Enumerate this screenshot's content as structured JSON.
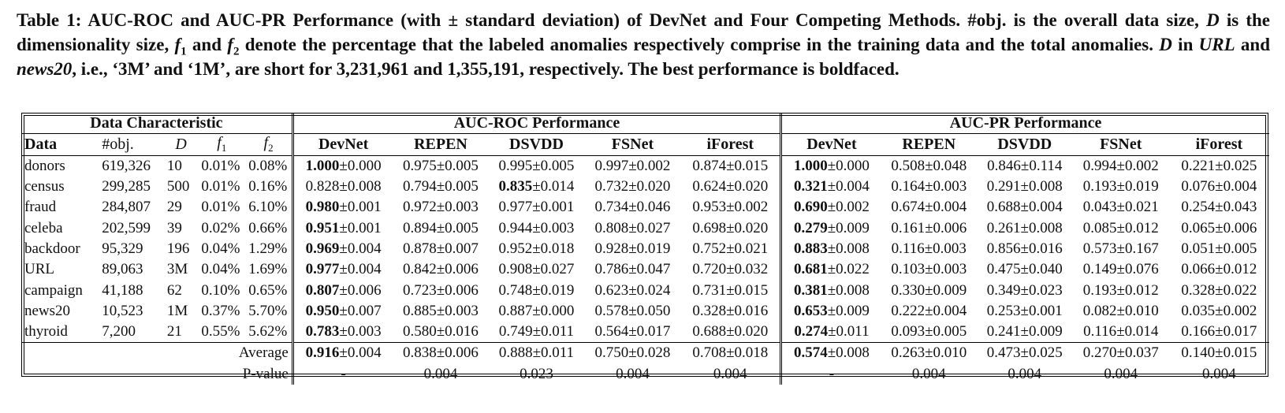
{
  "caption": {
    "part1": "Table 1: AUC-ROC and AUC-PR Performance (with ± standard deviation) of DevNet and Four Competing Methods. #obj. is the overall data size, ",
    "D1": "D",
    "part2": " is the dimensionality size, ",
    "f": "f",
    "sub1": "1",
    "and1": " and ",
    "sub2": "2",
    "part3": " denote the percentage that the labeled anomalies respectively comprise in the training data and the total anomalies. ",
    "D2": "D",
    "part4": " in ",
    "url": "URL",
    "and2": " and ",
    "news": "news20",
    "part5": ", i.e., ‘3M’ and ‘1M’, are short for 3,231,961 and 1,355,191, respectively. The best performance is boldfaced."
  },
  "groups": {
    "data": "Data Characteristic",
    "roc": "AUC-ROC Performance",
    "pr": "AUC-PR Performance"
  },
  "headers": {
    "data": "Data",
    "obj": "#obj.",
    "D": "D",
    "f1": "f",
    "f1sub": "1",
    "f2": "f",
    "f2sub": "2",
    "methods": [
      "DevNet",
      "REPEN",
      "DSVDD",
      "FSNet",
      "iForest"
    ]
  },
  "rows": [
    {
      "name": "donors",
      "obj": "619,326",
      "D": "10",
      "f1": "0.01%",
      "f2": "0.08%",
      "roc": [
        {
          "v": "1.000",
          "s": "±0.000",
          "b": true
        },
        {
          "v": "0.975",
          "s": "±0.005"
        },
        {
          "v": "0.995",
          "s": "±0.005"
        },
        {
          "v": "0.997",
          "s": "±0.002"
        },
        {
          "v": "0.874",
          "s": "±0.015"
        }
      ],
      "pr": [
        {
          "v": "1.000",
          "s": "±0.000",
          "b": true
        },
        {
          "v": "0.508",
          "s": "±0.048"
        },
        {
          "v": "0.846",
          "s": "±0.114"
        },
        {
          "v": "0.994",
          "s": "±0.002"
        },
        {
          "v": "0.221",
          "s": "±0.025"
        }
      ]
    },
    {
      "name": "census",
      "obj": "299,285",
      "D": "500",
      "f1": "0.01%",
      "f2": "0.16%",
      "roc": [
        {
          "v": "0.828",
          "s": "±0.008"
        },
        {
          "v": "0.794",
          "s": "±0.005"
        },
        {
          "v": "0.835",
          "s": "±0.014",
          "b": true
        },
        {
          "v": "0.732",
          "s": "±0.020"
        },
        {
          "v": "0.624",
          "s": "±0.020"
        }
      ],
      "pr": [
        {
          "v": "0.321",
          "s": "±0.004",
          "b": true
        },
        {
          "v": "0.164",
          "s": "±0.003"
        },
        {
          "v": "0.291",
          "s": "±0.008"
        },
        {
          "v": "0.193",
          "s": "±0.019"
        },
        {
          "v": "0.076",
          "s": "±0.004"
        }
      ]
    },
    {
      "name": "fraud",
      "obj": "284,807",
      "D": "29",
      "f1": "0.01%",
      "f2": "6.10%",
      "roc": [
        {
          "v": "0.980",
          "s": "±0.001",
          "b": true
        },
        {
          "v": "0.972",
          "s": "±0.003"
        },
        {
          "v": "0.977",
          "s": "±0.001"
        },
        {
          "v": "0.734",
          "s": "±0.046"
        },
        {
          "v": "0.953",
          "s": "±0.002"
        }
      ],
      "pr": [
        {
          "v": "0.690",
          "s": "±0.002",
          "b": true
        },
        {
          "v": "0.674",
          "s": "±0.004"
        },
        {
          "v": "0.688",
          "s": "±0.004"
        },
        {
          "v": "0.043",
          "s": "±0.021"
        },
        {
          "v": "0.254",
          "s": "±0.043"
        }
      ]
    },
    {
      "name": "celeba",
      "obj": "202,599",
      "D": "39",
      "f1": "0.02%",
      "f2": "0.66%",
      "roc": [
        {
          "v": "0.951",
          "s": "±0.001",
          "b": true
        },
        {
          "v": "0.894",
          "s": "±0.005"
        },
        {
          "v": "0.944",
          "s": "±0.003"
        },
        {
          "v": "0.808",
          "s": "±0.027"
        },
        {
          "v": "0.698",
          "s": "±0.020"
        }
      ],
      "pr": [
        {
          "v": "0.279",
          "s": "±0.009",
          "b": true
        },
        {
          "v": "0.161",
          "s": "±0.006"
        },
        {
          "v": "0.261",
          "s": "±0.008"
        },
        {
          "v": "0.085",
          "s": "±0.012"
        },
        {
          "v": "0.065",
          "s": "±0.006"
        }
      ]
    },
    {
      "name": "backdoor",
      "obj": "95,329",
      "D": "196",
      "f1": "0.04%",
      "f2": "1.29%",
      "roc": [
        {
          "v": "0.969",
          "s": "±0.004",
          "b": true
        },
        {
          "v": "0.878",
          "s": "±0.007"
        },
        {
          "v": "0.952",
          "s": "±0.018"
        },
        {
          "v": "0.928",
          "s": "±0.019"
        },
        {
          "v": "0.752",
          "s": "±0.021"
        }
      ],
      "pr": [
        {
          "v": "0.883",
          "s": "±0.008",
          "b": true
        },
        {
          "v": "0.116",
          "s": "±0.003"
        },
        {
          "v": "0.856",
          "s": "±0.016"
        },
        {
          "v": "0.573",
          "s": "±0.167"
        },
        {
          "v": "0.051",
          "s": "±0.005"
        }
      ]
    },
    {
      "name": "URL",
      "obj": "89,063",
      "D": "3M",
      "f1": "0.04%",
      "f2": "1.69%",
      "roc": [
        {
          "v": "0.977",
          "s": "±0.004",
          "b": true
        },
        {
          "v": "0.842",
          "s": "±0.006"
        },
        {
          "v": "0.908",
          "s": "±0.027"
        },
        {
          "v": "0.786",
          "s": "±0.047"
        },
        {
          "v": "0.720",
          "s": "±0.032"
        }
      ],
      "pr": [
        {
          "v": "0.681",
          "s": "±0.022",
          "b": true
        },
        {
          "v": "0.103",
          "s": "±0.003"
        },
        {
          "v": "0.475",
          "s": "±0.040"
        },
        {
          "v": "0.149",
          "s": "±0.076"
        },
        {
          "v": "0.066",
          "s": "±0.012"
        }
      ]
    },
    {
      "name": "campaign",
      "obj": "41,188",
      "D": "62",
      "f1": "0.10%",
      "f2": "0.65%",
      "roc": [
        {
          "v": "0.807",
          "s": "±0.006",
          "b": true
        },
        {
          "v": "0.723",
          "s": "±0.006"
        },
        {
          "v": "0.748",
          "s": "±0.019"
        },
        {
          "v": "0.623",
          "s": "±0.024"
        },
        {
          "v": "0.731",
          "s": "±0.015"
        }
      ],
      "pr": [
        {
          "v": "0.381",
          "s": "±0.008",
          "b": true
        },
        {
          "v": "0.330",
          "s": "±0.009"
        },
        {
          "v": "0.349",
          "s": "±0.023"
        },
        {
          "v": "0.193",
          "s": "±0.012"
        },
        {
          "v": "0.328",
          "s": "±0.022"
        }
      ]
    },
    {
      "name": "news20",
      "obj": "10,523",
      "D": "1M",
      "f1": "0.37%",
      "f2": "5.70%",
      "roc": [
        {
          "v": "0.950",
          "s": "±0.007",
          "b": true
        },
        {
          "v": "0.885",
          "s": "±0.003"
        },
        {
          "v": "0.887",
          "s": "±0.000"
        },
        {
          "v": "0.578",
          "s": "±0.050"
        },
        {
          "v": "0.328",
          "s": "±0.016"
        }
      ],
      "pr": [
        {
          "v": "0.653",
          "s": "±0.009",
          "b": true
        },
        {
          "v": "0.222",
          "s": "±0.004"
        },
        {
          "v": "0.253",
          "s": "±0.001"
        },
        {
          "v": "0.082",
          "s": "±0.010"
        },
        {
          "v": "0.035",
          "s": "±0.002"
        }
      ]
    },
    {
      "name": "thyroid",
      "obj": "7,200",
      "D": "21",
      "f1": "0.55%",
      "f2": "5.62%",
      "roc": [
        {
          "v": "0.783",
          "s": "±0.003",
          "b": true
        },
        {
          "v": "0.580",
          "s": "±0.016"
        },
        {
          "v": "0.749",
          "s": "±0.011"
        },
        {
          "v": "0.564",
          "s": "±0.017"
        },
        {
          "v": "0.688",
          "s": "±0.020"
        }
      ],
      "pr": [
        {
          "v": "0.274",
          "s": "±0.011",
          "b": true
        },
        {
          "v": "0.093",
          "s": "±0.005"
        },
        {
          "v": "0.241",
          "s": "±0.009"
        },
        {
          "v": "0.116",
          "s": "±0.014"
        },
        {
          "v": "0.166",
          "s": "±0.017"
        }
      ]
    }
  ],
  "average": {
    "label": "Average",
    "roc": [
      {
        "v": "0.916",
        "s": "±0.004",
        "b": true
      },
      {
        "v": "0.838",
        "s": "±0.006"
      },
      {
        "v": "0.888",
        "s": "±0.011"
      },
      {
        "v": "0.750",
        "s": "±0.028"
      },
      {
        "v": "0.708",
        "s": "±0.018"
      }
    ],
    "pr": [
      {
        "v": "0.574",
        "s": "±0.008",
        "b": true
      },
      {
        "v": "0.263",
        "s": "±0.010"
      },
      {
        "v": "0.473",
        "s": "±0.025"
      },
      {
        "v": "0.270",
        "s": "±0.037"
      },
      {
        "v": "0.140",
        "s": "±0.015"
      }
    ]
  },
  "pvalue": {
    "label": "P-value",
    "roc": [
      "-",
      "0.004",
      "0.023",
      "0.004",
      "0.004"
    ],
    "pr": [
      "-",
      "0.004",
      "0.004",
      "0.004",
      "0.004"
    ]
  }
}
